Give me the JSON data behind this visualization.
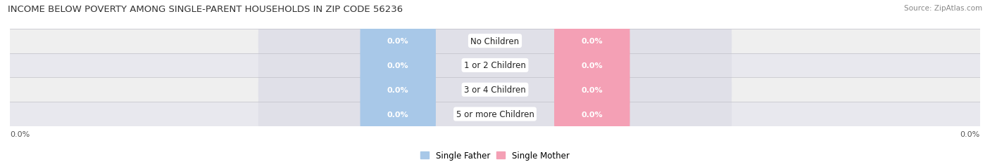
{
  "title": "INCOME BELOW POVERTY AMONG SINGLE-PARENT HOUSEHOLDS IN ZIP CODE 56236",
  "source": "Source: ZipAtlas.com",
  "categories": [
    "No Children",
    "1 or 2 Children",
    "3 or 4 Children",
    "5 or more Children"
  ],
  "father_values": [
    0.0,
    0.0,
    0.0,
    0.0
  ],
  "mother_values": [
    0.0,
    0.0,
    0.0,
    0.0
  ],
  "father_color": "#a8c8e8",
  "mother_color": "#f4a0b5",
  "track_color": "#e0e0e8",
  "row_bg_even": "#efefef",
  "row_bg_odd": "#e8e8ee",
  "title_fontsize": 9.5,
  "label_fontsize": 8.0,
  "tick_fontsize": 8.0,
  "legend_fontsize": 8.5,
  "source_fontsize": 7.5,
  "figure_width": 14.06,
  "figure_height": 2.32,
  "dpi": 100,
  "left_axis_label": "0.0%",
  "right_axis_label": "0.0%",
  "legend_father": "Single Father",
  "legend_mother": "Single Mother"
}
